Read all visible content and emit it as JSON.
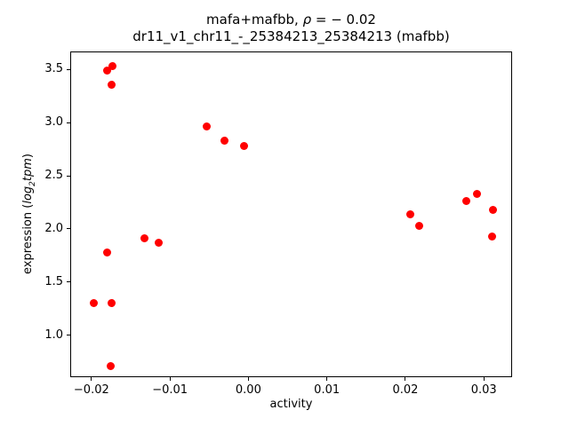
{
  "figure": {
    "title": {
      "pre": "mafa+mafbb, ",
      "rho": "ρ",
      "post": " = − 0.02"
    },
    "subtitle": "dr11_v1_chr11_-_25384213_25384213 (mafbb)",
    "xlabel": "activity",
    "ylabel": {
      "pre": "expression (",
      "italic1": "log",
      "sub": "2",
      "italic2": "tpm",
      "post": ")"
    }
  },
  "chart_data": {
    "type": "scatter",
    "title": "mafa+mafbb, ρ = −0.02",
    "subtitle": "dr11_v1_chr11_-_25384213_25384213 (mafbb)",
    "xlabel": "activity",
    "ylabel": "expression (log2tpm)",
    "legend": "none",
    "grid": false,
    "marker_color": "#ff0000",
    "marker_diameter_px": 9,
    "xlim": [
      -0.0227,
      0.0336
    ],
    "ylim": [
      0.608,
      3.667
    ],
    "x_ticks": [
      -0.02,
      -0.01,
      0.0,
      0.01,
      0.02,
      0.03
    ],
    "x_tick_labels": [
      "−0.02",
      "−0.01",
      "0.00",
      "0.01",
      "0.02",
      "0.03"
    ],
    "y_ticks": [
      1.0,
      1.5,
      2.0,
      2.5,
      3.0,
      3.5
    ],
    "y_tick_labels": [
      "1.0",
      "1.5",
      "2.0",
      "2.5",
      "3.0",
      "3.5"
    ],
    "points": [
      {
        "x": -0.0174,
        "y": 3.54
      },
      {
        "x": -0.0181,
        "y": 3.5
      },
      {
        "x": -0.0175,
        "y": 3.36
      },
      {
        "x": -0.0181,
        "y": 1.79
      },
      {
        "x": -0.0198,
        "y": 1.31
      },
      {
        "x": -0.0176,
        "y": 1.31
      },
      {
        "x": -0.0177,
        "y": 0.72
      },
      {
        "x": -0.0133,
        "y": 1.92
      },
      {
        "x": -0.0115,
        "y": 1.88
      },
      {
        "x": -0.0054,
        "y": 2.97
      },
      {
        "x": -0.0032,
        "y": 2.84
      },
      {
        "x": -0.0007,
        "y": 2.79
      },
      {
        "x": 0.0205,
        "y": 2.15
      },
      {
        "x": 0.0216,
        "y": 2.04
      },
      {
        "x": 0.0276,
        "y": 2.27
      },
      {
        "x": 0.029,
        "y": 2.34
      },
      {
        "x": 0.0311,
        "y": 2.19
      },
      {
        "x": 0.0309,
        "y": 1.94
      }
    ]
  }
}
